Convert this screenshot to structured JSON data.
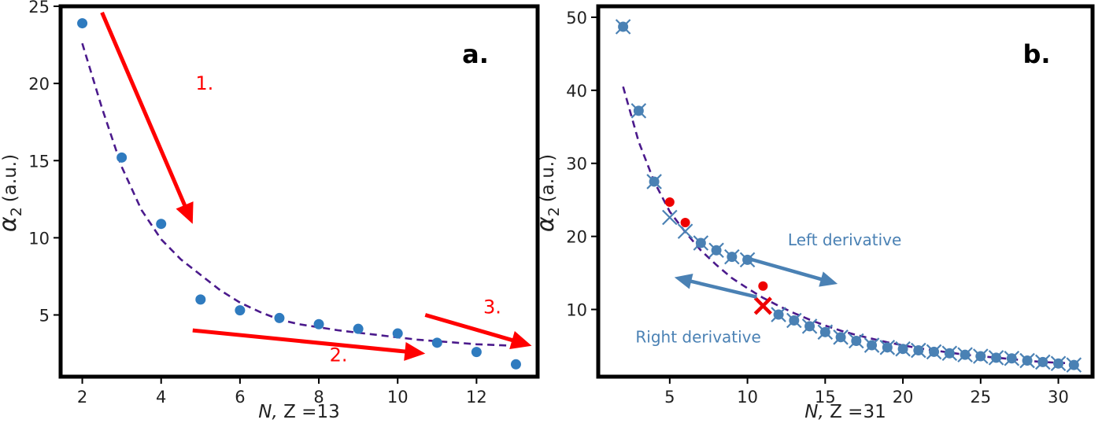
{
  "chart_data": [
    {
      "type": "scatter",
      "panel_label": "a.",
      "xlabel": "N, Z =13",
      "xlabel_parts": {
        "var": "N,",
        "rest": " Z =13"
      },
      "ylabel": "α2 (a.u.)",
      "ylabel_parts": {
        "symbol": "α",
        "sub": "2",
        "unit": "(a.u.)"
      },
      "xlim": [
        1.45,
        13.55
      ],
      "ylim": [
        1.0,
        25.0
      ],
      "xticks": [
        2,
        4,
        6,
        8,
        10,
        12
      ],
      "yticks": [
        5,
        10,
        15,
        20,
        25
      ],
      "colors": {
        "points": "#2f7bbf",
        "fit": "#4b1a8c",
        "arrows": "#ff0000"
      },
      "series": [
        {
          "name": "alpha2",
          "x": [
            2,
            3,
            4,
            5,
            6,
            7,
            8,
            9,
            10,
            11,
            12,
            13
          ],
          "y": [
            23.9,
            15.2,
            10.9,
            6.0,
            5.3,
            4.8,
            4.4,
            4.1,
            3.8,
            3.2,
            2.6,
            1.8
          ]
        }
      ],
      "fit": {
        "name": "fit",
        "x": [
          2,
          2.5,
          3,
          3.5,
          4,
          4.5,
          5,
          5.5,
          6,
          6.5,
          7,
          7.5,
          8,
          8.5,
          9,
          9.5,
          10,
          10.5,
          11,
          11.5,
          12,
          12.5,
          13
        ],
        "y": [
          22.6,
          18.4,
          14.6,
          11.8,
          9.9,
          8.6,
          7.6,
          6.6,
          5.8,
          5.2,
          4.7,
          4.4,
          4.2,
          4.0,
          3.85,
          3.7,
          3.55,
          3.4,
          3.3,
          3.2,
          3.1,
          3.05,
          3.0
        ]
      },
      "arrows": [
        {
          "label": "1.",
          "from": [
            2.5,
            24.6
          ],
          "to": [
            4.8,
            10.9
          ],
          "label_at": [
            5.1,
            19.6
          ]
        },
        {
          "label": "2.",
          "from": [
            4.8,
            4.0
          ],
          "to": [
            10.7,
            2.5
          ],
          "label_at": [
            8.5,
            2.0
          ]
        },
        {
          "label": "3.",
          "from": [
            10.7,
            5.0
          ],
          "to": [
            13.4,
            3.0
          ],
          "label_at": [
            12.4,
            5.1
          ]
        }
      ]
    },
    {
      "type": "scatter",
      "panel_label": "b.",
      "xlabel": "N, Z =31",
      "xlabel_parts": {
        "var": "N,",
        "rest": " Z =31"
      },
      "ylabel": "α2 (a.u.)",
      "ylabel_parts": {
        "symbol": "α",
        "sub": "2",
        "unit": "(a.u.)"
      },
      "xlim": [
        0.4,
        32.2
      ],
      "ylim": [
        0.8,
        51.5
      ],
      "xticks": [
        5,
        10,
        15,
        20,
        25,
        30
      ],
      "yticks": [
        10,
        20,
        30,
        40,
        50
      ],
      "colors": {
        "points": "#4a81b4",
        "crosses": "#4a81b4",
        "red_points": "#ee0000",
        "red_cross": "#ee0000",
        "fit": "#4b1a8c",
        "arrows": "#4a81b4"
      },
      "series": [
        {
          "name": "circles",
          "x": [
            2,
            3,
            4,
            7,
            8,
            9,
            10,
            12,
            13,
            14,
            15,
            16,
            17,
            18,
            19,
            20,
            21,
            22,
            23,
            24,
            25,
            26,
            27,
            28,
            29,
            30,
            31
          ],
          "y": [
            48.7,
            37.2,
            27.5,
            19.1,
            18.1,
            17.2,
            16.8,
            9.3,
            8.5,
            7.7,
            6.9,
            6.2,
            5.7,
            5.1,
            4.8,
            4.6,
            4.4,
            4.2,
            4.0,
            3.8,
            3.6,
            3.4,
            3.3,
            3.0,
            2.8,
            2.6,
            2.4
          ]
        },
        {
          "name": "crosses",
          "x": [
            2,
            3,
            4,
            5,
            6,
            7,
            8,
            9,
            10,
            12,
            13,
            14,
            15,
            16,
            17,
            18,
            19,
            20,
            21,
            22,
            23,
            24,
            25,
            26,
            27,
            28,
            29,
            30,
            31
          ],
          "y": [
            48.7,
            37.2,
            27.5,
            22.6,
            20.7,
            19.1,
            18.1,
            17.2,
            16.8,
            9.3,
            8.5,
            7.7,
            6.9,
            6.2,
            5.7,
            5.1,
            4.8,
            4.6,
            4.4,
            4.2,
            4.0,
            3.8,
            3.6,
            3.4,
            3.3,
            3.0,
            2.8,
            2.6,
            2.4
          ]
        },
        {
          "name": "red_circles",
          "x": [
            5,
            6,
            11
          ],
          "y": [
            24.7,
            21.9,
            13.2
          ]
        },
        {
          "name": "red_cross",
          "x": [
            11
          ],
          "y": [
            10.5
          ]
        }
      ],
      "fit": {
        "name": "fit",
        "x": [
          2,
          3,
          4,
          5,
          6,
          7,
          8,
          9,
          10,
          11,
          12,
          13,
          14,
          15,
          16,
          17,
          18,
          19,
          20,
          21,
          22,
          23,
          24,
          25,
          26,
          27,
          28,
          29,
          30,
          31
        ],
        "y": [
          40.5,
          33.0,
          27.5,
          23.4,
          20.6,
          18.1,
          16.1,
          14.3,
          12.9,
          11.6,
          10.5,
          9.5,
          8.6,
          7.8,
          7.1,
          6.5,
          6.0,
          5.5,
          5.1,
          4.7,
          4.4,
          4.1,
          3.8,
          3.6,
          3.4,
          3.2,
          3.0,
          2.8,
          2.7,
          2.6
        ]
      },
      "arrows": [
        {
          "label": "Left derivative",
          "from": [
            10.0,
            17.0
          ],
          "to": [
            15.8,
            13.5
          ],
          "label_at": [
            12.6,
            18.8
          ]
        },
        {
          "label": "Right derivative",
          "from": [
            10.6,
            11.7
          ],
          "to": [
            5.3,
            14.4
          ],
          "label_at": [
            2.8,
            5.5
          ]
        }
      ]
    }
  ]
}
